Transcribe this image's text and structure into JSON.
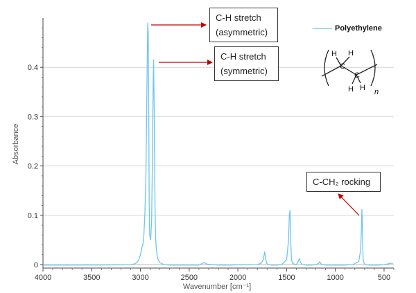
{
  "chart_data": {
    "type": "line",
    "title": "",
    "xlabel": "Wavenumber [cm⁻¹]",
    "ylabel": "Absorbance",
    "xlim": [
      4000,
      400
    ],
    "ylim": [
      -0.007,
      0.5
    ],
    "x_reversed": true,
    "x_ticks": [
      4000,
      3500,
      3000,
      2500,
      2000,
      1500,
      1000,
      500
    ],
    "y_ticks": [
      0,
      0.1,
      0.2,
      0.3,
      0.4
    ],
    "y_tick_labels": [
      "0",
      "0.1",
      "0.2",
      "0.3",
      "0.4"
    ],
    "grid": "horizontal",
    "legend_position": "top-right",
    "color": "#6ec6ea",
    "series": [
      {
        "name": "Polyethylene",
        "x": [
          4000,
          3800,
          3600,
          3400,
          3200,
          3100,
          3050,
          3020,
          3000,
          2985,
          2975,
          2965,
          2955,
          2945,
          2938,
          2930,
          2925,
          2920,
          2915,
          2910,
          2905,
          2895,
          2885,
          2878,
          2870,
          2865,
          2860,
          2855,
          2850,
          2847,
          2843,
          2838,
          2830,
          2820,
          2800,
          2760,
          2700,
          2600,
          2500,
          2400,
          2360,
          2340,
          2320,
          2200,
          2100,
          2000,
          1900,
          1800,
          1760,
          1740,
          1725,
          1715,
          1705,
          1690,
          1650,
          1600,
          1550,
          1500,
          1480,
          1472,
          1465,
          1462,
          1458,
          1450,
          1440,
          1420,
          1400,
          1385,
          1375,
          1368,
          1360,
          1340,
          1300,
          1250,
          1200,
          1170,
          1160,
          1150,
          1130,
          1100,
          1000,
          900,
          820,
          760,
          740,
          732,
          728,
          724,
          720,
          715,
          705,
          690,
          650,
          600,
          550,
          500,
          470,
          450,
          430,
          410
        ],
        "y": [
          -0.001,
          -0.001,
          -0.0008,
          -0.0008,
          -0.0005,
          0.0,
          0.002,
          0.008,
          0.02,
          0.035,
          0.04,
          0.06,
          0.1,
          0.17,
          0.28,
          0.42,
          0.49,
          0.47,
          0.33,
          0.12,
          0.06,
          0.05,
          0.09,
          0.2,
          0.36,
          0.415,
          0.34,
          0.22,
          0.12,
          0.08,
          0.05,
          0.035,
          0.02,
          0.01,
          0.004,
          0.0,
          -0.001,
          -0.001,
          -0.001,
          -0.001,
          0.003,
          0.004,
          0.001,
          -0.001,
          -0.001,
          -0.0005,
          -0.0005,
          0.0,
          0.003,
          0.01,
          0.026,
          0.012,
          0.003,
          0.0,
          -0.001,
          -0.001,
          0.0,
          0.01,
          0.05,
          0.1,
          0.11,
          0.09,
          0.05,
          0.01,
          0.003,
          0.001,
          0.0,
          0.005,
          0.01,
          0.012,
          0.005,
          0.0,
          -0.001,
          -0.001,
          0.0,
          0.003,
          0.006,
          0.002,
          0.0,
          -0.001,
          -0.001,
          -0.001,
          0.0,
          0.006,
          0.03,
          0.075,
          0.112,
          0.09,
          0.05,
          0.012,
          0.003,
          0.0,
          -0.001,
          -0.001,
          -0.001,
          0.0,
          0.001,
          0.002,
          0.003,
          0.002
        ]
      }
    ],
    "annotations": [
      {
        "lines": [
          "C-H stretch",
          "(asymmetric)"
        ]
      },
      {
        "lines": [
          "C-H stretch",
          "(symmetric)"
        ]
      },
      {
        "lines": [
          "C-CH₂ rocking"
        ]
      }
    ],
    "structure_labels": {
      "h": "H",
      "c": "C",
      "n": "n"
    }
  }
}
